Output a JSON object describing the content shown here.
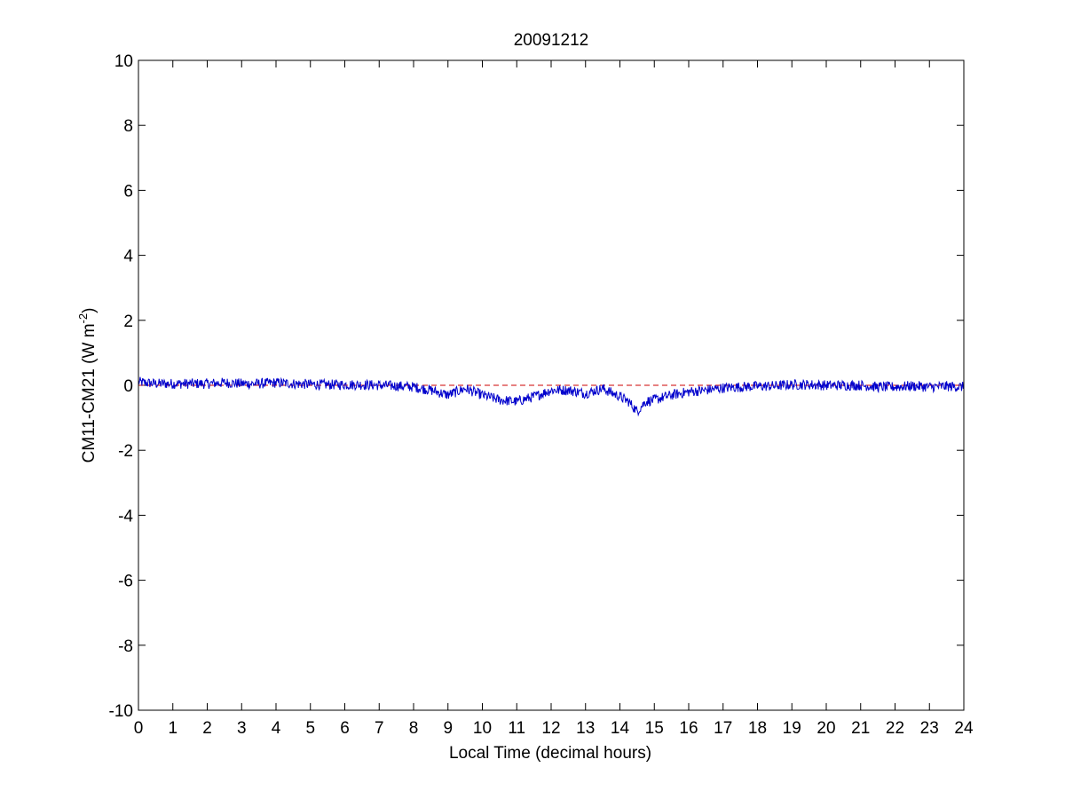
{
  "colors": {
    "background": "#ffffff",
    "axes": "#000000",
    "series_line": "#0000cc",
    "zero_reference": "#cc0000"
  },
  "chart_data": {
    "type": "line",
    "title": "20091212",
    "xlabel": "Local Time (decimal hours)",
    "ylabel_main": "CM11-CM21 (W m",
    "ylabel_exponent": "-2",
    "ylabel_close": ")",
    "xlim": [
      0,
      24
    ],
    "ylim": [
      -10,
      10
    ],
    "x_ticks": [
      0,
      1,
      2,
      3,
      4,
      5,
      6,
      7,
      8,
      9,
      10,
      11,
      12,
      13,
      14,
      15,
      16,
      17,
      18,
      19,
      20,
      21,
      22,
      23,
      24
    ],
    "x_tick_labels": [
      "0",
      "1",
      "2",
      "3",
      "4",
      "5",
      "6",
      "7",
      "8",
      "9",
      "10",
      "11",
      "12",
      "13",
      "14",
      "15",
      "16",
      "17",
      "18",
      "19",
      "20",
      "21",
      "22",
      "23",
      "24"
    ],
    "y_ticks": [
      -10,
      -8,
      -6,
      -4,
      -2,
      0,
      2,
      4,
      6,
      8,
      10
    ],
    "y_tick_labels": [
      "-10",
      "-8",
      "-6",
      "-4",
      "-2",
      "0",
      "2",
      "4",
      "6",
      "8",
      "10"
    ],
    "grid": false,
    "legend": "none",
    "series": [
      {
        "style": "solid",
        "color": "#0000cc",
        "x": [
          0,
          0.5,
          1,
          1.5,
          2,
          2.5,
          3,
          3.5,
          4,
          4.5,
          5,
          5.5,
          6,
          6.5,
          7,
          7.5,
          8,
          8.5,
          9,
          9.5,
          10,
          10.5,
          11,
          11.5,
          12,
          12.5,
          13,
          13.5,
          14,
          14.25,
          14.5,
          14.75,
          15,
          15.5,
          16,
          16.5,
          17,
          17.5,
          18,
          18.5,
          19,
          19.5,
          20,
          20.5,
          21,
          21.5,
          22,
          22.5,
          23,
          23.5,
          24
        ],
        "y": [
          0.1,
          0.05,
          0.05,
          0.05,
          0.05,
          0.08,
          0.05,
          0.05,
          0.08,
          0.05,
          0.03,
          0.02,
          0.02,
          0.02,
          0.0,
          -0.02,
          -0.05,
          -0.15,
          -0.3,
          -0.1,
          -0.3,
          -0.45,
          -0.5,
          -0.35,
          -0.15,
          -0.15,
          -0.25,
          -0.1,
          -0.35,
          -0.5,
          -0.8,
          -0.5,
          -0.45,
          -0.3,
          -0.2,
          -0.15,
          -0.08,
          -0.05,
          -0.03,
          -0.02,
          0.02,
          0.02,
          0.0,
          0.0,
          0.0,
          -0.05,
          -0.05,
          -0.02,
          -0.05,
          -0.03,
          -0.05
        ]
      },
      {
        "style": "dashed",
        "color": "#cc0000",
        "x": [
          0,
          24
        ],
        "y": [
          0,
          0
        ]
      }
    ]
  }
}
